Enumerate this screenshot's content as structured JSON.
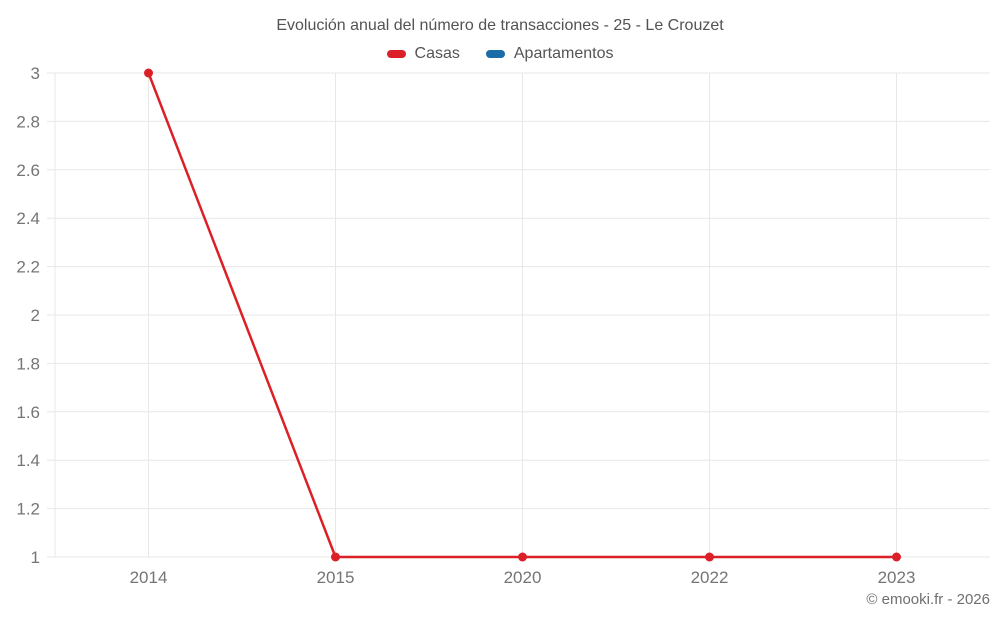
{
  "header": {
    "title": "Evolución anual del número de transacciones - 25 - Le Crouzet"
  },
  "legend": [
    {
      "label": "Casas",
      "color": "#DB2127"
    },
    {
      "label": "Apartamentos",
      "color": "#1A6DA4"
    }
  ],
  "footer": {
    "credit": "© emooki.fr - 2026"
  },
  "chart_data": {
    "type": "line",
    "title": "Evolución anual del número de transacciones - 25 - Le Crouzet",
    "categories": [
      "2014",
      "2015",
      "2020",
      "2022",
      "2023"
    ],
    "series": [
      {
        "name": "Casas",
        "color": "#DB2127",
        "values": [
          3,
          1,
          1,
          1,
          1
        ]
      },
      {
        "name": "Apartamentos",
        "color": "#1A6DA4",
        "values": []
      }
    ],
    "xlabel": "",
    "ylabel": "",
    "ylim": [
      1,
      3
    ],
    "ytick_step": 0.2,
    "yticks": [
      1,
      1.2,
      1.4,
      1.6,
      1.8,
      2,
      2.2,
      2.4,
      2.6,
      2.8,
      3
    ],
    "grid": true,
    "legend_position": "top",
    "colors": {
      "grid_line": "#e7e7e7",
      "tick_text": "#757575",
      "title_text": "#535353"
    }
  }
}
